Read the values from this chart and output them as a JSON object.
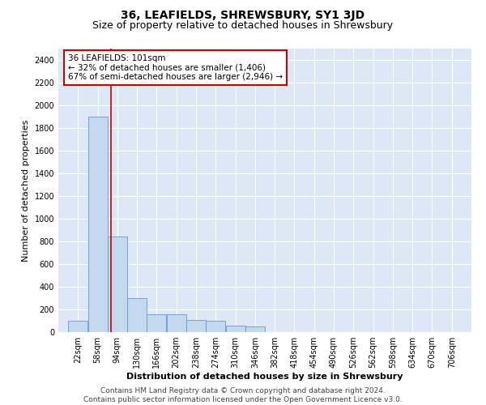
{
  "title": "36, LEAFIELDS, SHREWSBURY, SY1 3JD",
  "subtitle": "Size of property relative to detached houses in Shrewsbury",
  "xlabel": "Distribution of detached houses by size in Shrewsbury",
  "ylabel": "Number of detached properties",
  "footer_line1": "Contains HM Land Registry data © Crown copyright and database right 2024.",
  "footer_line2": "Contains public sector information licensed under the Open Government Licence v3.0.",
  "annotation_line1": "36 LEAFIELDS: 101sqm",
  "annotation_line2": "← 32% of detached houses are smaller (1,406)",
  "annotation_line3": "67% of semi-detached houses are larger (2,946) →",
  "bar_color": "#c5d9ee",
  "bar_edge_color": "#6699cc",
  "vline_color": "#cc0000",
  "annotation_box_color": "#cc0000",
  "background_color": "#dce8f5",
  "bins_left_edges": [
    22,
    58,
    94,
    130,
    166,
    202,
    238,
    274,
    310,
    346,
    382,
    418,
    454,
    490,
    526,
    562,
    598,
    634,
    670,
    706
  ],
  "bin_width": 36,
  "bar_heights": [
    100,
    1900,
    840,
    300,
    155,
    155,
    110,
    100,
    60,
    50,
    0,
    0,
    0,
    0,
    0,
    0,
    0,
    0,
    0,
    0
  ],
  "vline_x": 101,
  "ylim": [
    0,
    2500
  ],
  "yticks": [
    0,
    200,
    400,
    600,
    800,
    1000,
    1200,
    1400,
    1600,
    1800,
    2000,
    2200,
    2400
  ],
  "title_fontsize": 10,
  "subtitle_fontsize": 9,
  "xlabel_fontsize": 8,
  "ylabel_fontsize": 8,
  "tick_fontsize": 7,
  "annotation_fontsize": 7.5,
  "footer_fontsize": 6.5
}
